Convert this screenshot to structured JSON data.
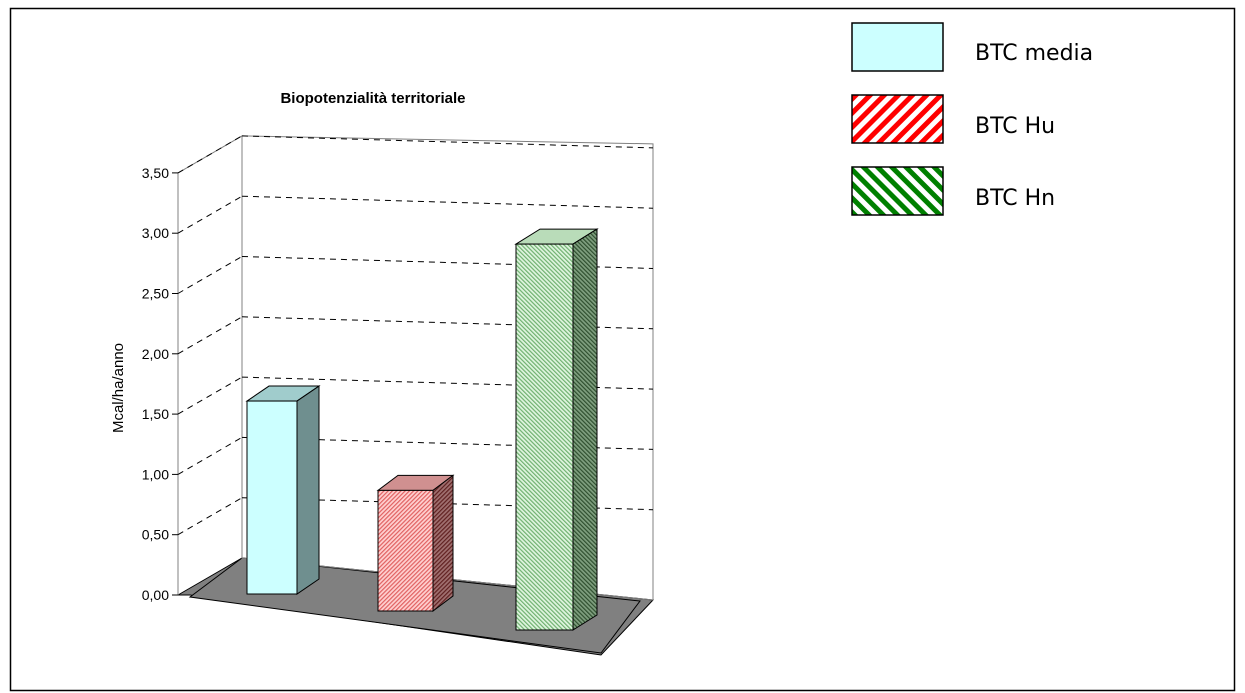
{
  "chart_data": {
    "type": "bar",
    "title": "Biopotenzialità territoriale",
    "xlabel": "",
    "ylabel": "Mcal/ha/anno",
    "ylim": [
      0,
      3.5
    ],
    "yticks": [
      "0,00",
      "0,50",
      "1,00",
      "1,50",
      "2,00",
      "2,50",
      "3,00",
      "3,50"
    ],
    "grid": true,
    "legend_position": "top-right",
    "series": [
      {
        "name": "BTC media",
        "value": 1.6,
        "color": "#ccffff",
        "pattern": "solid"
      },
      {
        "name": "BTC Hu",
        "value": 1.0,
        "color": "#ff0000",
        "pattern": "diagonal-stripes"
      },
      {
        "name": "BTC Hn",
        "value": 3.2,
        "color": "#008000",
        "pattern": "diagonal-stripes-reverse"
      }
    ]
  }
}
